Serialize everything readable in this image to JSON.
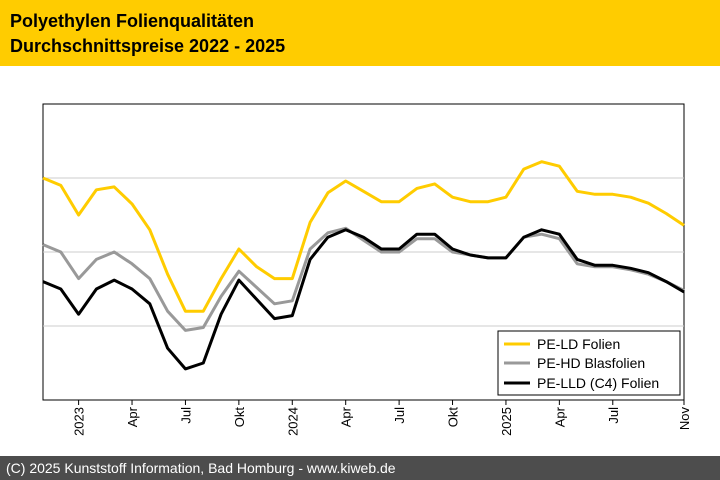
{
  "header": {
    "title_line1": "Polyethylen Folienqualitäten",
    "title_line2": "Durchschnittspreise 2022 - 2025"
  },
  "footer": {
    "text": "(C) 2025 Kunststoff Information, Bad Homburg - www.kiweb.de"
  },
  "colors": {
    "header_bg": "#ffcc00",
    "footer_bg": "#4d4d4d",
    "pe_ld": "#ffcc00",
    "pe_hd": "#999999",
    "pe_lld": "#000000",
    "grid": "#cccccc"
  },
  "chart_data": {
    "type": "line",
    "title": "Polyethylen Folienqualitäten Durchschnittspreise 2022 - 2025",
    "xlabel": "",
    "ylabel": "",
    "ylim": [
      0,
      4
    ],
    "grid": true,
    "legend_position": "bottom-right",
    "x_tick_labels": [
      {
        "index": 2,
        "label": "2023"
      },
      {
        "index": 5,
        "label": "Apr"
      },
      {
        "index": 8,
        "label": "Jul"
      },
      {
        "index": 11,
        "label": "Okt"
      },
      {
        "index": 14,
        "label": "2024"
      },
      {
        "index": 17,
        "label": "Apr"
      },
      {
        "index": 20,
        "label": "Jul"
      },
      {
        "index": 23,
        "label": "Okt"
      },
      {
        "index": 26,
        "label": "2025"
      },
      {
        "index": 29,
        "label": "Apr"
      },
      {
        "index": 32,
        "label": "Jul"
      },
      {
        "index": 36,
        "label": "Nov"
      }
    ],
    "series": [
      {
        "name": "PE-LD Folien",
        "color": "#ffcc00",
        "values": [
          3.0,
          2.9,
          2.5,
          2.84,
          2.88,
          2.65,
          2.3,
          1.7,
          1.2,
          1.2,
          1.64,
          2.04,
          1.8,
          1.64,
          1.64,
          2.4,
          2.8,
          2.96,
          2.82,
          2.68,
          2.68,
          2.86,
          2.92,
          2.74,
          2.68,
          2.68,
          2.74,
          3.12,
          3.22,
          3.16,
          2.82,
          2.78,
          2.78,
          2.74,
          2.66,
          2.52,
          2.36
        ]
      },
      {
        "name": "PE-HD Blasfolien",
        "color": "#999999",
        "values": [
          2.1,
          2.0,
          1.64,
          1.9,
          2.0,
          1.84,
          1.64,
          1.2,
          0.94,
          0.98,
          1.4,
          1.74,
          1.52,
          1.3,
          1.34,
          2.04,
          2.26,
          2.32,
          2.16,
          2.0,
          2.0,
          2.18,
          2.18,
          2.0,
          1.96,
          1.92,
          1.92,
          2.2,
          2.24,
          2.18,
          1.84,
          1.8,
          1.8,
          1.76,
          1.7,
          1.6,
          1.48
        ]
      },
      {
        "name": "PE-LLD (C4) Folien",
        "color": "#000000",
        "values": [
          1.6,
          1.5,
          1.16,
          1.5,
          1.62,
          1.5,
          1.3,
          0.7,
          0.42,
          0.5,
          1.16,
          1.62,
          1.36,
          1.1,
          1.14,
          1.9,
          2.2,
          2.3,
          2.2,
          2.04,
          2.04,
          2.24,
          2.24,
          2.04,
          1.96,
          1.92,
          1.92,
          2.2,
          2.3,
          2.24,
          1.9,
          1.82,
          1.82,
          1.78,
          1.72,
          1.6,
          1.46
        ]
      }
    ]
  }
}
